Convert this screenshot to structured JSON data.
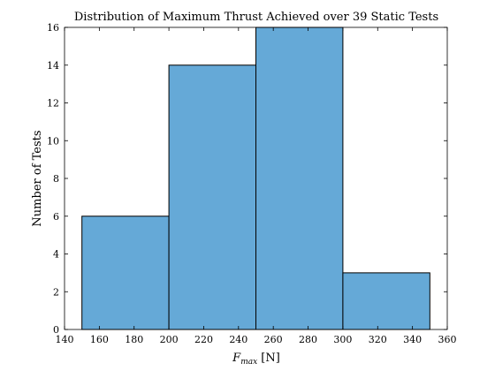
{
  "chart_data": {
    "type": "bar",
    "title": "Distribution of Maximum Thrust Achieved over 39 Static Tests",
    "xlabel_main": "F",
    "xlabel_sub": "max",
    "xlabel_unit": " [N]",
    "ylabel": "Number of Tests",
    "bins": [
      {
        "x0": 150,
        "x1": 200,
        "value": 6
      },
      {
        "x0": 200,
        "x1": 250,
        "value": 14
      },
      {
        "x0": 250,
        "x1": 300,
        "value": 16
      },
      {
        "x0": 300,
        "x1": 350,
        "value": 3
      }
    ],
    "xlim": [
      140,
      360
    ],
    "ylim": [
      0,
      16
    ],
    "xticks": [
      140,
      160,
      180,
      200,
      220,
      240,
      260,
      280,
      300,
      320,
      340,
      360
    ],
    "yticks": [
      0,
      2,
      4,
      6,
      8,
      10,
      12,
      14,
      16
    ],
    "bar_color": "#65a9d7",
    "edge_color": "#000000",
    "grid": false,
    "legend": false
  }
}
